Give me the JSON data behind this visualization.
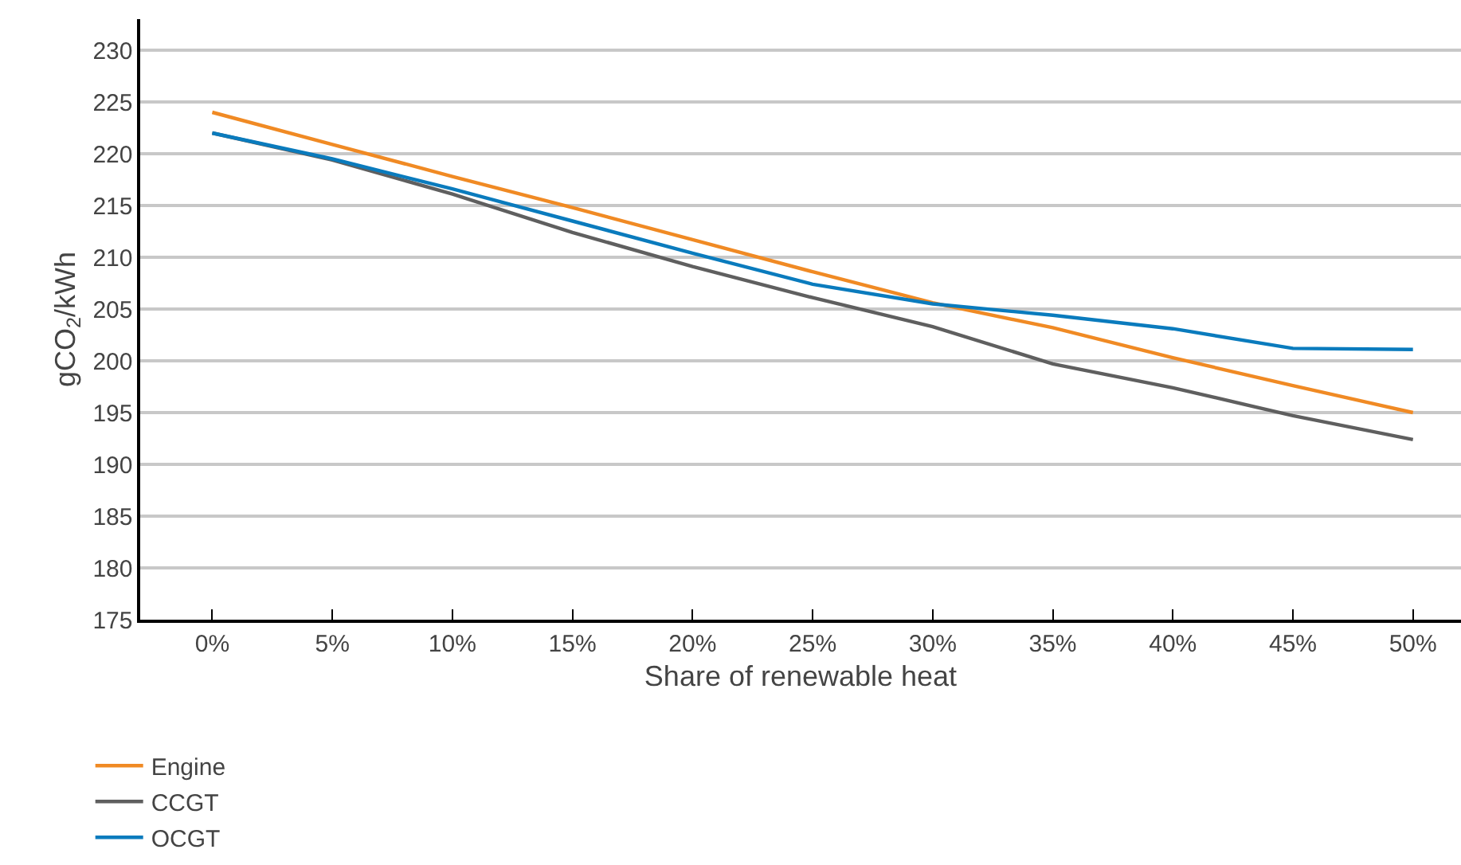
{
  "chart_data": {
    "type": "line",
    "xlabel": "Share of renewable heat",
    "ylabel": "gCO$_{2}$/kWh",
    "categories": [
      "0%",
      "5%",
      "10%",
      "15%",
      "20%",
      "25%",
      "30%",
      "35%",
      "40%",
      "45%",
      "50%"
    ],
    "series": [
      {
        "name": "Engine",
        "color": "#f08a24",
        "values": [
          224,
          220.9,
          217.8,
          214.8,
          211.7,
          208.6,
          205.6,
          203.2,
          200.3,
          197.6,
          195.0
        ]
      },
      {
        "name": "CCGT",
        "color": "#5f5f5f",
        "values": [
          222,
          219.4,
          216.1,
          212.4,
          209.1,
          206.1,
          203.3,
          199.7,
          197.4,
          194.7,
          192.4
        ]
      },
      {
        "name": "OCGT",
        "color": "#0a7bbd",
        "values": [
          222,
          219.5,
          216.6,
          213.5,
          210.4,
          207.4,
          205.5,
          204.4,
          203.1,
          201.2,
          201.1
        ]
      }
    ],
    "ylim": [
      175,
      233
    ],
    "yticks": [
      175,
      180,
      185,
      190,
      195,
      200,
      205,
      210,
      215,
      220,
      225,
      230
    ],
    "grid": "y",
    "legend": "bottom left",
    "marker": "none",
    "line_style": "solid"
  }
}
